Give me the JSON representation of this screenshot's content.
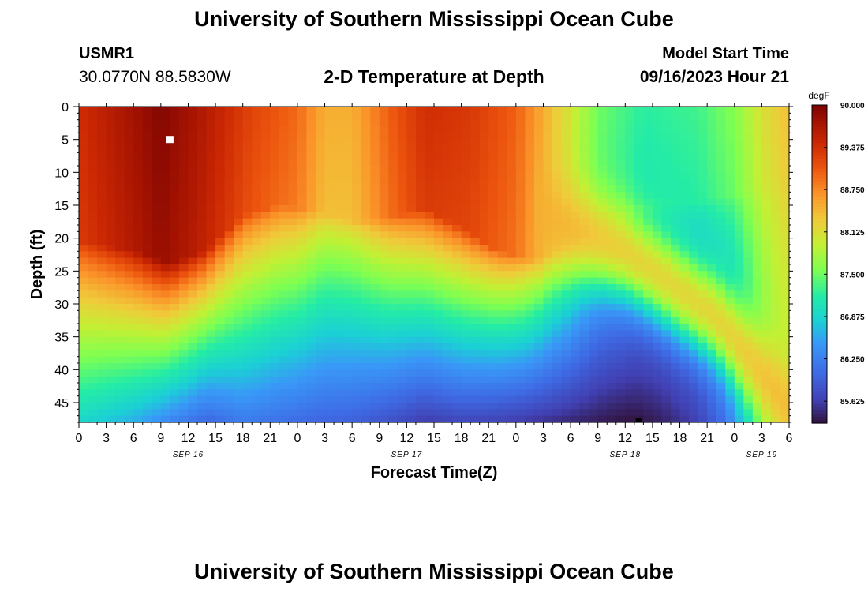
{
  "header": {
    "title": "University of Southern Mississippi Ocean Cube",
    "station_id": "USMR1",
    "coordinates": "30.0770N  88.5830W",
    "subtitle": "2-D Temperature at Depth",
    "model_start_label": "Model Start Time",
    "model_start_value": "09/16/2023 Hour 21"
  },
  "footer": {
    "title": "University of Southern Mississippi Ocean Cube"
  },
  "chart_data": {
    "type": "heatmap",
    "title": "2-D Temperature at Depth",
    "xlabel": "Forecast Time(Z)",
    "ylabel": "Depth (ft)",
    "x_hour_range": [
      0,
      78
    ],
    "x_tick_labels": [
      "0",
      "3",
      "6",
      "9",
      "12",
      "15",
      "18",
      "21",
      "0",
      "3",
      "6",
      "9",
      "12",
      "15",
      "18",
      "21",
      "0",
      "3",
      "6",
      "9",
      "12",
      "15",
      "18",
      "21",
      "0",
      "3",
      "6"
    ],
    "x_tick_step_hours": 3,
    "date_labels": [
      {
        "label": "SEP 16",
        "hour": 12
      },
      {
        "label": "SEP 17",
        "hour": 36
      },
      {
        "label": "SEP 18",
        "hour": 60
      },
      {
        "label": "SEP 19",
        "hour": 75
      }
    ],
    "y_range": [
      0,
      48
    ],
    "y_tick_labels": [
      "0",
      "5",
      "10",
      "15",
      "20",
      "25",
      "30",
      "35",
      "40",
      "45"
    ],
    "y_tick_values": [
      0,
      5,
      10,
      15,
      20,
      25,
      30,
      35,
      40,
      45
    ],
    "colorbar": {
      "unit": "degF",
      "min": 85.3,
      "max": 90.0,
      "tick_labels": [
        "90.000",
        "89.375",
        "88.750",
        "88.125",
        "87.500",
        "86.875",
        "86.250",
        "85.625"
      ],
      "tick_values": [
        90.0,
        89.375,
        88.75,
        88.125,
        87.5,
        86.875,
        86.25,
        85.625
      ]
    },
    "markers": [
      {
        "name": "max-marker",
        "color": "#ffffff",
        "hour": 10,
        "depth": 5
      },
      {
        "name": "min-marker",
        "color": "#000000",
        "hour": 61.5,
        "depth": 48
      }
    ],
    "temperature_model": {
      "mixed_layer_depth": [
        [
          0,
          20.5
        ],
        [
          6,
          22
        ],
        [
          10,
          24
        ],
        [
          14,
          22
        ],
        [
          18,
          16.5
        ],
        [
          22,
          15
        ],
        [
          26,
          16
        ],
        [
          30,
          17.5
        ],
        [
          34,
          17
        ],
        [
          38,
          15.5
        ],
        [
          42,
          18.5
        ],
        [
          46,
          22
        ],
        [
          50,
          23.5
        ],
        [
          54,
          21
        ],
        [
          58,
          17.5
        ],
        [
          62,
          15.5
        ],
        [
          66,
          15
        ],
        [
          70,
          14
        ],
        [
          74,
          13
        ],
        [
          78,
          12
        ]
      ],
      "surface_temp": [
        [
          0,
          89.4
        ],
        [
          5,
          89.7
        ],
        [
          9,
          89.95
        ],
        [
          13,
          89.7
        ],
        [
          19,
          89.2
        ],
        [
          24,
          88.95
        ],
        [
          27,
          88.5
        ],
        [
          30,
          88.5
        ],
        [
          34,
          89.0
        ],
        [
          38,
          89.4
        ],
        [
          43,
          89.3
        ],
        [
          48,
          89.0
        ],
        [
          53,
          88.2
        ],
        [
          57,
          87.5
        ],
        [
          62,
          87.2
        ],
        [
          68,
          87.3
        ],
        [
          72,
          87.6
        ],
        [
          75,
          88.1
        ],
        [
          78,
          88.4
        ]
      ],
      "deep_temp": [
        [
          0,
          86.9
        ],
        [
          6,
          86.6
        ],
        [
          10,
          86.3
        ],
        [
          14,
          86.0
        ],
        [
          18,
          86.2
        ],
        [
          22,
          86.1
        ],
        [
          26,
          86.0
        ],
        [
          30,
          85.95
        ],
        [
          34,
          85.8
        ],
        [
          38,
          85.6
        ],
        [
          42,
          85.7
        ],
        [
          46,
          85.65
        ],
        [
          50,
          85.55
        ],
        [
          54,
          85.45
        ],
        [
          58,
          85.35
        ],
        [
          61,
          85.3
        ],
        [
          64,
          85.4
        ],
        [
          68,
          85.65
        ],
        [
          71,
          86.1
        ],
        [
          74,
          87.0
        ],
        [
          76,
          87.6
        ],
        [
          78,
          87.8
        ]
      ],
      "warm_tongue_mid": [
        [
          50,
          16
        ],
        [
          60,
          22
        ],
        [
          70,
          32
        ],
        [
          78,
          46
        ]
      ],
      "warm_tongue_temp": 88.5,
      "warm_tongue_width_ft": 7
    }
  }
}
